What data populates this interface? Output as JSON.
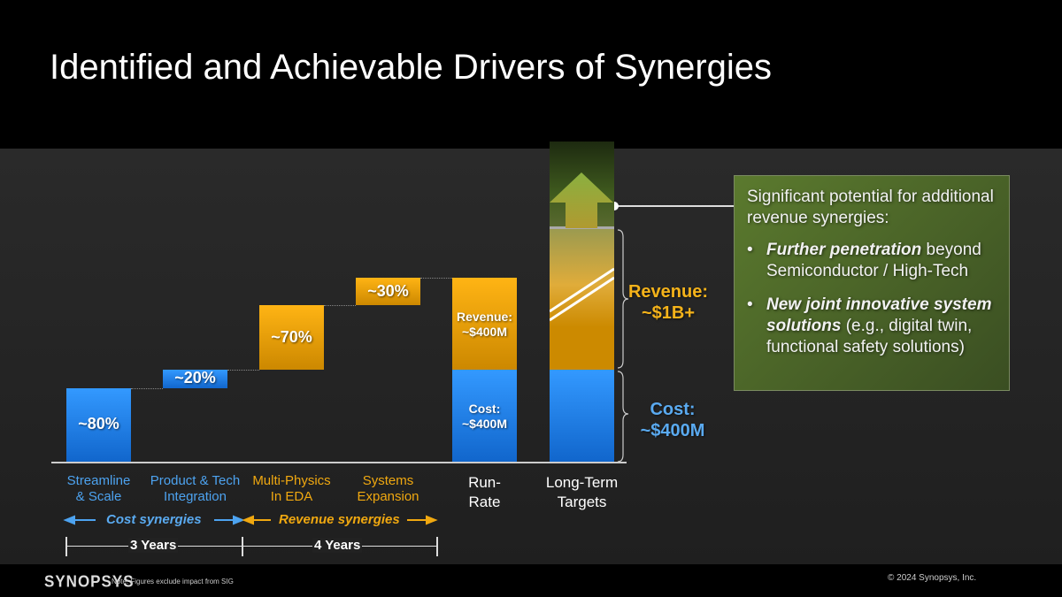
{
  "title": "Identified and Achievable Drivers of Synergies",
  "colors": {
    "cost": "#2f8fef",
    "revenue": "#f0a810",
    "callout": "#4f6a2a"
  },
  "chart_data": {
    "type": "bar",
    "subtype": "waterfall",
    "categories": [
      "Streamline & Scale",
      "Product & Tech Integration",
      "Multi-Physics In EDA",
      "Systems Expansion",
      "Run-Rate",
      "Long-Term Targets"
    ],
    "steps": [
      {
        "category": "Streamline & Scale",
        "label": "~80%",
        "group": "cost",
        "share": 80
      },
      {
        "category": "Product & Tech Integration",
        "label": "~20%",
        "group": "cost",
        "share": 20
      },
      {
        "category": "Multi-Physics In EDA",
        "label": "~70%",
        "group": "revenue",
        "share": 70
      },
      {
        "category": "Systems Expansion",
        "label": "~30%",
        "group": "revenue",
        "share": 30
      }
    ],
    "run_rate": {
      "category": "Run-Rate",
      "cost": 400,
      "revenue": 400,
      "cost_label": "Cost:",
      "cost_value": "~$400M",
      "revenue_label": "Revenue:",
      "revenue_value": "~$400M"
    },
    "long_term": {
      "category": "Long-Term Targets",
      "cost": 400,
      "revenue": 1000,
      "cost_label": "Cost:",
      "cost_value": "~$400M",
      "revenue_label": "Revenue:",
      "revenue_value": "~$1B+",
      "axis_break": true,
      "upside_arrow": true
    },
    "units": "$M"
  },
  "cat_labels": [
    "Streamline\n& Scale",
    "Product & Tech\nIntegration",
    "Multi-Physics\nIn EDA",
    "Systems\nExpansion",
    "Run-\nRate",
    "Long-Term\nTargets"
  ],
  "legend": {
    "cost": "Cost synergies",
    "revenue": "Revenue synergies"
  },
  "timeline": {
    "cost": "3 Years",
    "revenue": "4 Years"
  },
  "callout": {
    "intro": "Significant potential for additional revenue synergies:",
    "bullets": [
      {
        "bold": "Further penetration",
        "rest": " beyond Semiconductor / High-Tech"
      },
      {
        "bold": "New joint innovative system solutions",
        "rest": " (e.g., digital twin, functional safety solutions)"
      }
    ]
  },
  "footer": {
    "logo": "SYNOPSYS",
    "note": "Note: Figures exclude impact from SIG",
    "copyright": "© 2024 Synopsys, Inc."
  }
}
